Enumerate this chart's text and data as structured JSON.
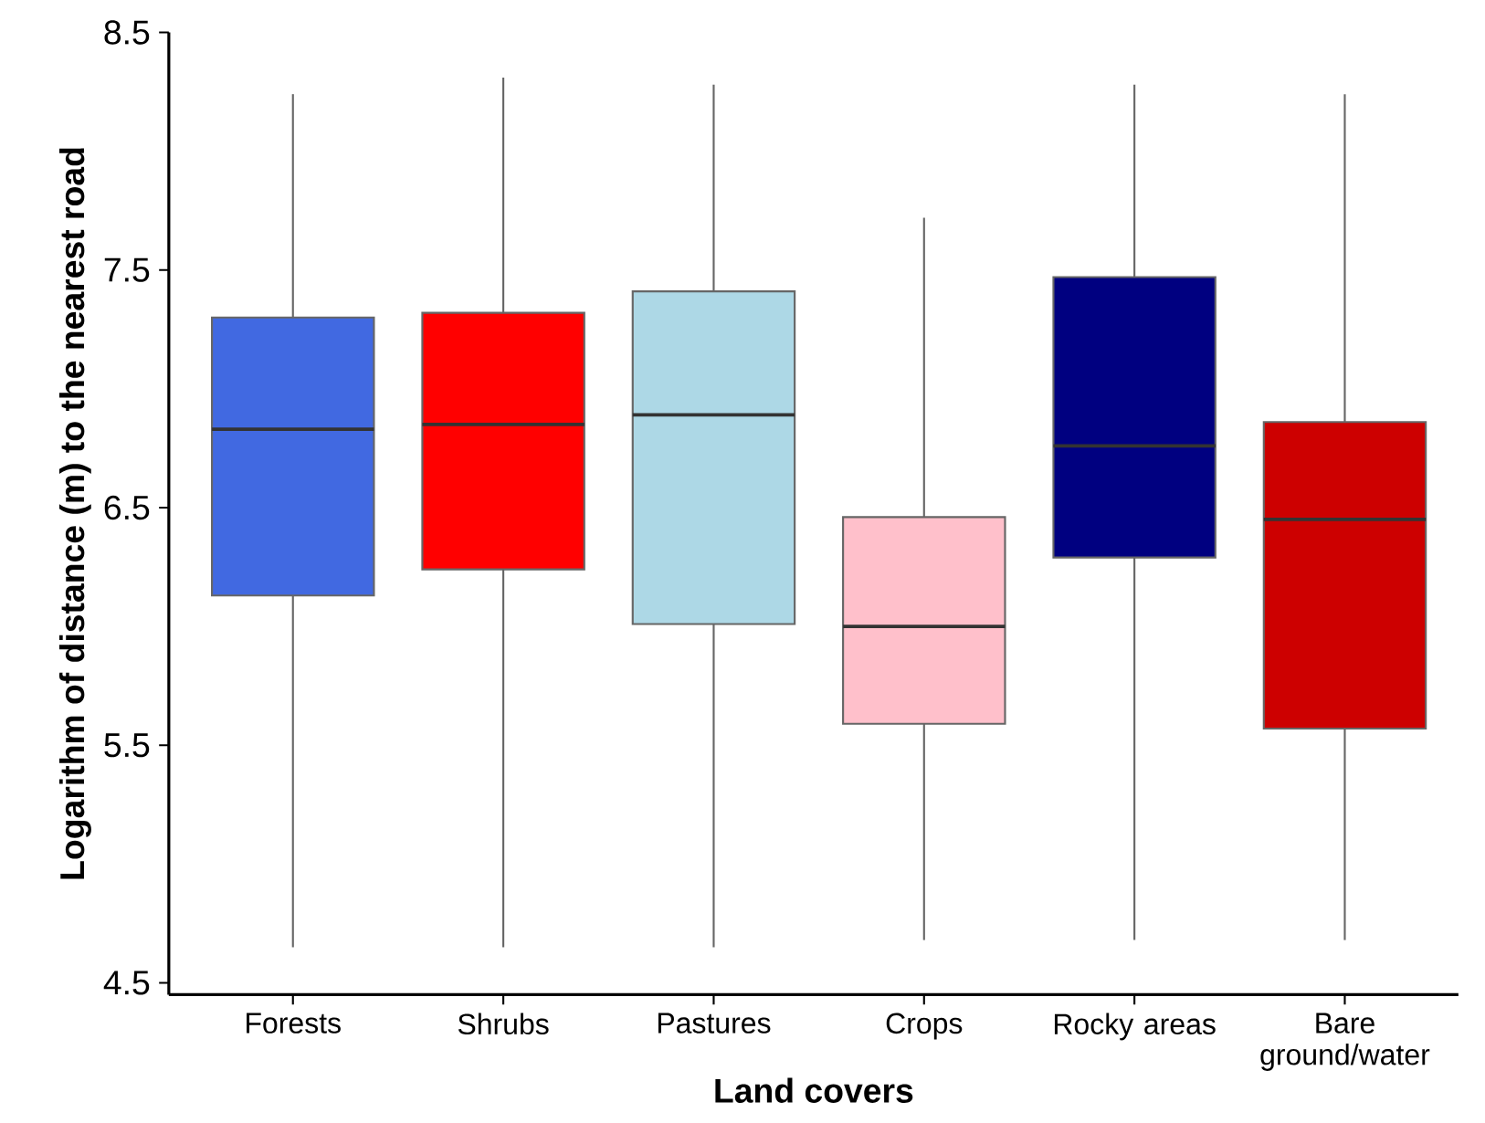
{
  "chart_data": {
    "type": "box",
    "xlabel": "Land covers",
    "ylabel": "Logarithm of distance (m) to the nearest road",
    "categories": [
      "Forests",
      "Shrubs",
      "Pastures",
      "Crops",
      "Rocky areas",
      "Bare ground/water"
    ],
    "colors": [
      "#4169e1",
      "#ff0000",
      "#add8e6",
      "#ffc0cb",
      "#000080",
      "#cd0000"
    ],
    "boxes": [
      {
        "low": 4.65,
        "q1": 6.13,
        "median": 6.83,
        "q3": 7.3,
        "high": 8.24
      },
      {
        "low": 4.65,
        "q1": 6.24,
        "median": 6.85,
        "q3": 7.32,
        "high": 8.31
      },
      {
        "low": 4.65,
        "q1": 6.01,
        "median": 6.89,
        "q3": 7.41,
        "high": 8.28
      },
      {
        "low": 4.68,
        "q1": 5.59,
        "median": 6.0,
        "q3": 6.46,
        "high": 7.72
      },
      {
        "low": 4.68,
        "q1": 6.29,
        "median": 6.76,
        "q3": 7.47,
        "high": 8.28
      },
      {
        "low": 4.68,
        "q1": 5.57,
        "median": 6.45,
        "q3": 6.86,
        "high": 8.24
      }
    ],
    "ylim": [
      4.45,
      8.5
    ],
    "yticks": [
      4.5,
      5.5,
      6.5,
      7.5,
      8.5
    ]
  }
}
